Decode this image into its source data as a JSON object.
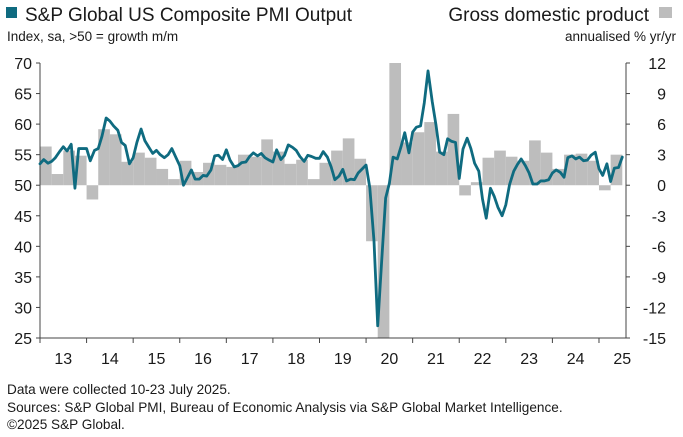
{
  "chart_data": {
    "type": "bar+line",
    "legend": [
      {
        "label": "S&P Global US Composite PMI Output",
        "color": "#0f6b80",
        "marker": "square"
      },
      {
        "label": "Gross domestic product",
        "color": "#bdbdbd",
        "marker": "square"
      }
    ],
    "left_axis_label": "Index, sa, >50 = growth m/m",
    "right_axis_label": "annualised % yr/yr",
    "y_left": {
      "min": 25,
      "max": 70,
      "ticks": [
        70,
        65,
        60,
        55,
        50,
        45,
        40,
        35,
        30,
        25
      ]
    },
    "y_right": {
      "min": -15,
      "max": 12,
      "ticks": [
        12,
        9,
        6,
        3,
        0,
        -3,
        -6,
        -9,
        -12,
        -15
      ]
    },
    "x": {
      "start": 2013,
      "end": 2025.58,
      "tick_labels": [
        "13",
        "14",
        "15",
        "16",
        "17",
        "18",
        "19",
        "20",
        "21",
        "22",
        "23",
        "24",
        "25"
      ]
    },
    "gdp_quarterly": [
      {
        "t": 2013.0,
        "v": 3.8
      },
      {
        "t": 2013.25,
        "v": 1.1
      },
      {
        "t": 2013.5,
        "v": 3.4
      },
      {
        "t": 2013.75,
        "v": 2.9
      },
      {
        "t": 2014.0,
        "v": -1.4
      },
      {
        "t": 2014.25,
        "v": 5.5
      },
      {
        "t": 2014.5,
        "v": 5.0
      },
      {
        "t": 2014.75,
        "v": 2.3
      },
      {
        "t": 2015.0,
        "v": 3.2
      },
      {
        "t": 2015.25,
        "v": 2.7
      },
      {
        "t": 2015.5,
        "v": 1.6
      },
      {
        "t": 2015.75,
        "v": 0.6
      },
      {
        "t": 2016.0,
        "v": 2.4
      },
      {
        "t": 2016.25,
        "v": 1.3
      },
      {
        "t": 2016.5,
        "v": 2.2
      },
      {
        "t": 2016.75,
        "v": 2.0
      },
      {
        "t": 2017.0,
        "v": 1.8
      },
      {
        "t": 2017.25,
        "v": 3.0
      },
      {
        "t": 2017.5,
        "v": 2.8
      },
      {
        "t": 2017.75,
        "v": 4.5
      },
      {
        "t": 2018.0,
        "v": 3.3
      },
      {
        "t": 2018.25,
        "v": 2.1
      },
      {
        "t": 2018.5,
        "v": 2.5
      },
      {
        "t": 2018.75,
        "v": 0.6
      },
      {
        "t": 2019.0,
        "v": 2.2
      },
      {
        "t": 2019.25,
        "v": 3.4
      },
      {
        "t": 2019.5,
        "v": 4.6
      },
      {
        "t": 2019.75,
        "v": 2.6
      },
      {
        "t": 2020.0,
        "v": -5.5
      },
      {
        "t": 2020.25,
        "v": -28.0
      },
      {
        "t": 2020.5,
        "v": 35.0
      },
      {
        "t": 2020.75,
        "v": 4.2
      },
      {
        "t": 2021.0,
        "v": 5.2
      },
      {
        "t": 2021.25,
        "v": 6.2
      },
      {
        "t": 2021.5,
        "v": 3.3
      },
      {
        "t": 2021.75,
        "v": 7.0
      },
      {
        "t": 2022.0,
        "v": -1.0
      },
      {
        "t": 2022.25,
        "v": 0.3
      },
      {
        "t": 2022.5,
        "v": 2.7
      },
      {
        "t": 2022.75,
        "v": 3.4
      },
      {
        "t": 2023.0,
        "v": 2.8
      },
      {
        "t": 2023.25,
        "v": 2.4
      },
      {
        "t": 2023.5,
        "v": 4.4
      },
      {
        "t": 2023.75,
        "v": 3.2
      },
      {
        "t": 2024.0,
        "v": 1.6
      },
      {
        "t": 2024.25,
        "v": 3.0
      },
      {
        "t": 2024.5,
        "v": 3.1
      },
      {
        "t": 2024.75,
        "v": 2.4
      },
      {
        "t": 2025.0,
        "v": -0.5
      },
      {
        "t": 2025.25,
        "v": 3.0
      }
    ],
    "pmi": [
      [
        2013.0,
        53.5
      ],
      [
        2013.08,
        54.2
      ],
      [
        2013.17,
        53.6
      ],
      [
        2013.25,
        53.9
      ],
      [
        2013.33,
        54.5
      ],
      [
        2013.42,
        55.5
      ],
      [
        2013.5,
        56.3
      ],
      [
        2013.58,
        55.6
      ],
      [
        2013.67,
        56.7
      ],
      [
        2013.75,
        49.5
      ],
      [
        2013.83,
        56.0
      ],
      [
        2013.92,
        56.0
      ],
      [
        2014.0,
        56.0
      ],
      [
        2014.08,
        54.0
      ],
      [
        2014.17,
        55.7
      ],
      [
        2014.25,
        56.0
      ],
      [
        2014.33,
        58.0
      ],
      [
        2014.42,
        61.0
      ],
      [
        2014.5,
        60.5
      ],
      [
        2014.58,
        59.7
      ],
      [
        2014.67,
        59.0
      ],
      [
        2014.75,
        57.0
      ],
      [
        2014.83,
        56.5
      ],
      [
        2014.92,
        53.5
      ],
      [
        2015.0,
        54.5
      ],
      [
        2015.08,
        57.0
      ],
      [
        2015.17,
        59.2
      ],
      [
        2015.25,
        57.3
      ],
      [
        2015.33,
        56.3
      ],
      [
        2015.42,
        55.2
      ],
      [
        2015.5,
        55.7
      ],
      [
        2015.58,
        55.0
      ],
      [
        2015.67,
        54.5
      ],
      [
        2015.75,
        55.0
      ],
      [
        2015.83,
        56.0
      ],
      [
        2015.92,
        54.5
      ],
      [
        2016.0,
        53.2
      ],
      [
        2016.08,
        50.0
      ],
      [
        2016.17,
        51.3
      ],
      [
        2016.25,
        52.5
      ],
      [
        2016.33,
        51.0
      ],
      [
        2016.42,
        51.0
      ],
      [
        2016.5,
        51.6
      ],
      [
        2016.58,
        51.5
      ],
      [
        2016.67,
        52.5
      ],
      [
        2016.75,
        54.8
      ],
      [
        2016.83,
        54.9
      ],
      [
        2016.92,
        54.2
      ],
      [
        2017.0,
        55.8
      ],
      [
        2017.08,
        54.1
      ],
      [
        2017.17,
        53.0
      ],
      [
        2017.25,
        53.2
      ],
      [
        2017.33,
        53.7
      ],
      [
        2017.42,
        53.8
      ],
      [
        2017.5,
        54.7
      ],
      [
        2017.58,
        55.3
      ],
      [
        2017.67,
        54.8
      ],
      [
        2017.75,
        55.2
      ],
      [
        2017.83,
        54.5
      ],
      [
        2017.92,
        54.1
      ],
      [
        2018.0,
        53.8
      ],
      [
        2018.08,
        55.8
      ],
      [
        2018.17,
        54.2
      ],
      [
        2018.25,
        54.9
      ],
      [
        2018.33,
        56.6
      ],
      [
        2018.42,
        56.2
      ],
      [
        2018.5,
        55.7
      ],
      [
        2018.58,
        54.7
      ],
      [
        2018.67,
        53.9
      ],
      [
        2018.75,
        54.9
      ],
      [
        2018.83,
        54.7
      ],
      [
        2018.92,
        54.4
      ],
      [
        2019.0,
        54.4
      ],
      [
        2019.08,
        55.5
      ],
      [
        2019.17,
        54.6
      ],
      [
        2019.25,
        53.0
      ],
      [
        2019.33,
        50.9
      ],
      [
        2019.42,
        51.5
      ],
      [
        2019.5,
        52.6
      ],
      [
        2019.58,
        50.7
      ],
      [
        2019.67,
        51.0
      ],
      [
        2019.75,
        50.9
      ],
      [
        2019.83,
        52.0
      ],
      [
        2019.92,
        52.7
      ],
      [
        2020.0,
        53.3
      ],
      [
        2020.08,
        49.6
      ],
      [
        2020.17,
        40.9
      ],
      [
        2020.25,
        27.0
      ],
      [
        2020.33,
        37.0
      ],
      [
        2020.42,
        47.9
      ],
      [
        2020.5,
        50.3
      ],
      [
        2020.58,
        54.6
      ],
      [
        2020.67,
        54.3
      ],
      [
        2020.75,
        56.3
      ],
      [
        2020.83,
        58.6
      ],
      [
        2020.92,
        55.3
      ],
      [
        2021.0,
        58.7
      ],
      [
        2021.08,
        59.5
      ],
      [
        2021.17,
        59.7
      ],
      [
        2021.25,
        63.5
      ],
      [
        2021.33,
        68.7
      ],
      [
        2021.42,
        63.7
      ],
      [
        2021.5,
        59.9
      ],
      [
        2021.58,
        55.4
      ],
      [
        2021.67,
        55.0
      ],
      [
        2021.75,
        57.6
      ],
      [
        2021.83,
        57.2
      ],
      [
        2021.92,
        57.0
      ],
      [
        2022.0,
        51.1
      ],
      [
        2022.08,
        55.9
      ],
      [
        2022.17,
        57.7
      ],
      [
        2022.25,
        56.0
      ],
      [
        2022.33,
        53.6
      ],
      [
        2022.42,
        52.3
      ],
      [
        2022.5,
        47.7
      ],
      [
        2022.58,
        44.6
      ],
      [
        2022.67,
        49.5
      ],
      [
        2022.75,
        48.2
      ],
      [
        2022.83,
        46.4
      ],
      [
        2022.92,
        45.0
      ],
      [
        2023.0,
        46.8
      ],
      [
        2023.08,
        50.1
      ],
      [
        2023.17,
        52.3
      ],
      [
        2023.25,
        53.4
      ],
      [
        2023.33,
        54.3
      ],
      [
        2023.42,
        53.2
      ],
      [
        2023.5,
        52.0
      ],
      [
        2023.58,
        50.2
      ],
      [
        2023.67,
        50.2
      ],
      [
        2023.75,
        50.7
      ],
      [
        2023.83,
        50.7
      ],
      [
        2023.92,
        50.9
      ],
      [
        2024.0,
        52.0
      ],
      [
        2024.08,
        52.5
      ],
      [
        2024.17,
        52.1
      ],
      [
        2024.25,
        51.3
      ],
      [
        2024.33,
        54.5
      ],
      [
        2024.42,
        54.8
      ],
      [
        2024.5,
        54.3
      ],
      [
        2024.58,
        54.6
      ],
      [
        2024.67,
        54.0
      ],
      [
        2024.75,
        54.1
      ],
      [
        2024.83,
        54.9
      ],
      [
        2024.92,
        55.4
      ],
      [
        2025.0,
        52.7
      ],
      [
        2025.08,
        51.6
      ],
      [
        2025.17,
        53.5
      ],
      [
        2025.25,
        50.6
      ],
      [
        2025.33,
        52.8
      ],
      [
        2025.42,
        52.9
      ],
      [
        2025.5,
        54.6
      ]
    ],
    "grid": false
  },
  "footnotes": [
    "Data were collected 10-23 July 2025.",
    "Sources: S&P Global PMI, Bureau of Economic Analysis via S&P Global Market Intelligence.",
    "©2025 S&P Global."
  ]
}
